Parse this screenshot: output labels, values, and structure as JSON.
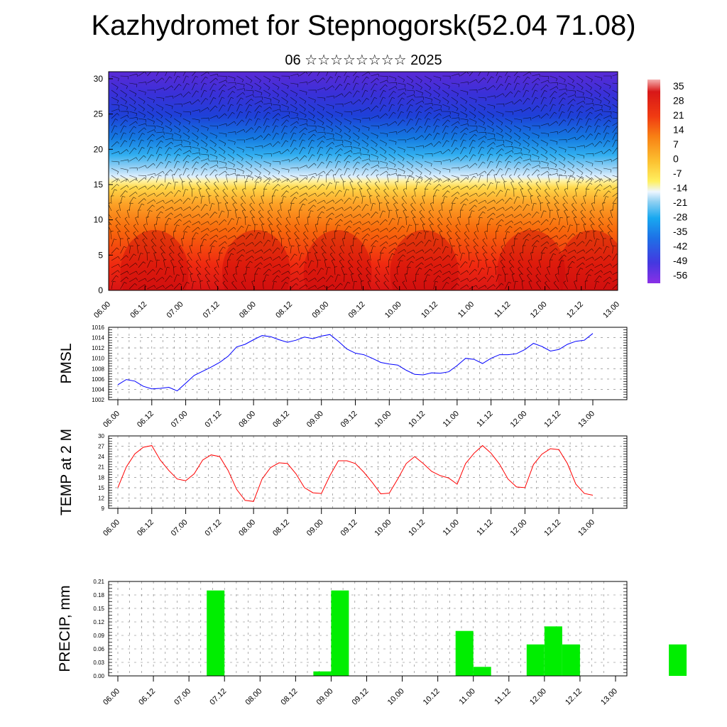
{
  "title": "Kazhydromet for Stepnogorsk(52.04 71.08)",
  "subtitle": "06 ☆☆☆☆☆☆☆☆ 2025",
  "time_labels": [
    "06.00",
    "06.12",
    "07.00",
    "07.12",
    "08.00",
    "08.12",
    "09.00",
    "09.12",
    "10.00",
    "10.12",
    "11.00",
    "11.12",
    "12.00",
    "12.12",
    "13.00"
  ],
  "chart_data": [
    {
      "type": "heatmap",
      "title": "Kazhydromet for Stepnogorsk(52.04 71.08)",
      "x": [
        "06.00",
        "06.12",
        "07.00",
        "07.12",
        "08.00",
        "08.12",
        "09.00",
        "09.12",
        "10.00",
        "10.12",
        "11.00",
        "11.12",
        "12.00",
        "12.12",
        "13.00"
      ],
      "y_ticks": [
        0,
        5,
        10,
        15,
        20,
        25,
        30
      ],
      "ylim": [
        0,
        31
      ],
      "colorbar_ticks": [
        "35",
        "28",
        "21",
        "14",
        "7",
        "0",
        "-7",
        "-14",
        "-21",
        "-28",
        "-35",
        "-42",
        "-49",
        "-56"
      ],
      "colorbar_range": [
        -60,
        38
      ],
      "colors": {
        "high": "#e01010",
        "mid": "#ffe060",
        "low": "#2020d0",
        "wind_barbs": "#000000"
      }
    },
    {
      "type": "line",
      "ylabel": "PMSL",
      "ylim": [
        1002,
        1016
      ],
      "yticks": [
        1002,
        1004,
        1006,
        1008,
        1010,
        1012,
        1014,
        1016
      ],
      "color": "#0000ff",
      "series": [
        {
          "values": [
            1004.9,
            1005.9,
            1005.6,
            1004.6,
            1004.1,
            1004.2,
            1004.4,
            1003.7,
            1005.2,
            1006.7,
            1007.5,
            1008.3,
            1009.2,
            1010.4,
            1012.2,
            1012.7,
            1013.6,
            1014.4,
            1014.2,
            1013.6,
            1013.1,
            1013.5,
            1014.1,
            1013.8,
            1014.3,
            1014.6,
            1013.3,
            1011.8,
            1011.0,
            1010.7,
            1010.0,
            1009.2,
            1008.9,
            1008.7,
            1007.7,
            1006.9,
            1006.8,
            1007.2,
            1007.1,
            1007.4,
            1008.6,
            1010.0,
            1009.8,
            1009.0,
            1010.0,
            1010.7,
            1010.7,
            1010.9,
            1011.7,
            1012.9,
            1012.3,
            1011.4,
            1011.7,
            1012.7,
            1013.3,
            1013.5,
            1014.8
          ]
        }
      ]
    },
    {
      "type": "line",
      "ylabel": "TEMP at 2 M",
      "ylim": [
        9,
        30
      ],
      "yticks": [
        9,
        12,
        15,
        18,
        21,
        24,
        27,
        30
      ],
      "color": "#ff0000",
      "series": [
        {
          "values": [
            15.0,
            21.0,
            24.8,
            26.7,
            27.2,
            23.0,
            20.0,
            17.5,
            17.0,
            19.0,
            23.0,
            24.5,
            24.0,
            20.0,
            14.5,
            11.3,
            11.0,
            17.5,
            20.8,
            22.2,
            22.0,
            19.0,
            15.0,
            13.5,
            13.3,
            18.5,
            22.8,
            22.8,
            22.0,
            19.5,
            16.5,
            13.2,
            13.4,
            17.5,
            22.0,
            24.0,
            22.0,
            19.7,
            18.5,
            17.8,
            16.0,
            22.0,
            25.0,
            27.2,
            25.0,
            21.8,
            17.5,
            15.2,
            15.0,
            21.7,
            24.7,
            26.3,
            26.0,
            22.0,
            16.0,
            13.3,
            12.8
          ]
        }
      ]
    },
    {
      "type": "bar",
      "ylabel": "PRECIP, mm",
      "ylim": [
        0,
        0.21
      ],
      "yticks": [
        "0.00",
        "0.03",
        "0.06",
        "0.09",
        "0.12",
        "0.15",
        "0.18",
        "0.21"
      ],
      "color": "#00ee00",
      "categories_hours": [
        33,
        69,
        75,
        117,
        123,
        141,
        147,
        153,
        189
      ],
      "values": [
        0.19,
        0.01,
        0.19,
        0.1,
        0.02,
        0.07,
        0.11,
        0.07,
        0.07
      ]
    }
  ]
}
